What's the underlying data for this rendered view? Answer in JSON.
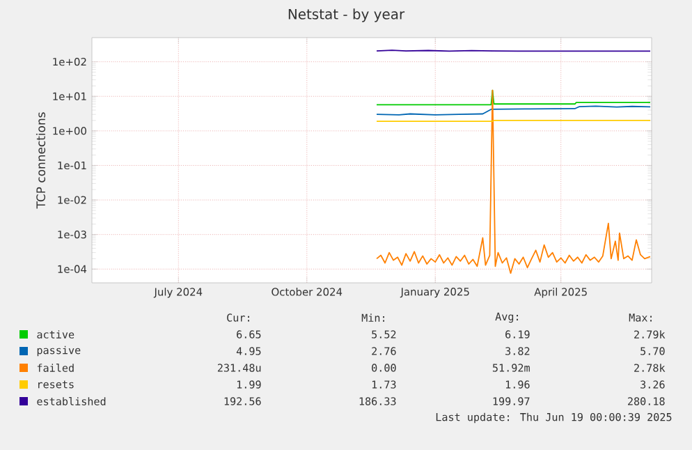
{
  "chart_data": {
    "type": "line",
    "title": "Netstat - by year",
    "ylabel": "TCP connections",
    "xlim": [
      "2024-05-14",
      "2025-06-19"
    ],
    "xticks": [
      {
        "value": "2024-07-15",
        "label": "July 2024"
      },
      {
        "value": "2024-10-15",
        "label": "October 2024"
      },
      {
        "value": "2025-01-15",
        "label": "January 2025"
      },
      {
        "value": "2025-04-15",
        "label": "April 2025"
      }
    ],
    "ylim": [
      4e-05,
      500
    ],
    "log": true,
    "yticks": [
      {
        "value": 0.0001,
        "label": "1e-04"
      },
      {
        "value": 0.001,
        "label": "1e-03"
      },
      {
        "value": 0.01,
        "label": "1e-02"
      },
      {
        "value": 0.1,
        "label": "1e-01"
      },
      {
        "value": 1,
        "label": "1e+00"
      },
      {
        "value": 10,
        "label": "1e+01"
      },
      {
        "value": 100,
        "label": "1e+02"
      }
    ],
    "grid": true,
    "legend": "bottom",
    "series": [
      {
        "name": "active",
        "color": "#00cc00",
        "x": [
          "2024-12-04",
          "2025-02-24",
          "2025-02-25",
          "2025-02-26",
          "2025-04-25",
          "2025-04-26",
          "2025-06-18"
        ],
        "values": [
          5.7,
          5.7,
          15,
          6.0,
          6.0,
          6.6,
          6.6
        ]
      },
      {
        "name": "passive",
        "color": "#0066b3",
        "x": [
          "2024-12-04",
          "2024-12-20",
          "2024-12-28",
          "2025-01-15",
          "2025-02-01",
          "2025-02-18",
          "2025-02-24",
          "2025-03-20",
          "2025-04-25",
          "2025-04-28",
          "2025-05-10",
          "2025-05-25",
          "2025-06-05",
          "2025-06-18"
        ],
        "values": [
          3.0,
          2.9,
          3.1,
          2.9,
          3.0,
          3.1,
          4.2,
          4.3,
          4.4,
          5.0,
          5.2,
          4.9,
          5.1,
          4.95
        ]
      },
      {
        "name": "failed",
        "color": "#ff8000",
        "x": [
          "2024-12-04",
          "2024-12-07",
          "2024-12-10",
          "2024-12-13",
          "2024-12-16",
          "2024-12-19",
          "2024-12-22",
          "2024-12-25",
          "2024-12-28",
          "2024-12-31",
          "2025-01-03",
          "2025-01-06",
          "2025-01-09",
          "2025-01-12",
          "2025-01-15",
          "2025-01-18",
          "2025-01-21",
          "2025-01-24",
          "2025-01-27",
          "2025-01-30",
          "2025-02-02",
          "2025-02-05",
          "2025-02-08",
          "2025-02-11",
          "2025-02-14",
          "2025-02-18",
          "2025-02-20",
          "2025-02-23",
          "2025-02-25",
          "2025-02-27",
          "2025-03-01",
          "2025-03-04",
          "2025-03-07",
          "2025-03-10",
          "2025-03-13",
          "2025-03-16",
          "2025-03-19",
          "2025-03-22",
          "2025-03-25",
          "2025-03-28",
          "2025-03-31",
          "2025-04-03",
          "2025-04-06",
          "2025-04-09",
          "2025-04-12",
          "2025-04-15",
          "2025-04-18",
          "2025-04-21",
          "2025-04-24",
          "2025-04-27",
          "2025-04-30",
          "2025-05-03",
          "2025-05-06",
          "2025-05-09",
          "2025-05-12",
          "2025-05-15",
          "2025-05-19",
          "2025-05-21",
          "2025-05-24",
          "2025-05-26",
          "2025-05-27",
          "2025-05-30",
          "2025-06-02",
          "2025-06-05",
          "2025-06-08",
          "2025-06-11",
          "2025-06-14",
          "2025-06-18"
        ],
        "values": [
          0.0002,
          0.00025,
          0.00015,
          0.0003,
          0.00018,
          0.00022,
          0.00013,
          0.00028,
          0.00017,
          0.00032,
          0.00015,
          0.00024,
          0.00014,
          0.0002,
          0.00016,
          0.00026,
          0.00015,
          0.00021,
          0.00013,
          0.00023,
          0.00017,
          0.00025,
          0.00014,
          0.00019,
          0.00012,
          0.0008,
          0.00013,
          0.00025,
          15,
          0.00012,
          0.0003,
          0.00015,
          0.00021,
          7.6e-05,
          0.0002,
          0.00014,
          0.00022,
          0.00011,
          0.0002,
          0.00035,
          0.00016,
          0.0005,
          0.00022,
          0.0003,
          0.00016,
          0.00021,
          0.00015,
          0.00025,
          0.00017,
          0.00022,
          0.00015,
          0.00026,
          0.00018,
          0.00022,
          0.00016,
          0.00024,
          0.0021,
          0.0002,
          0.00064,
          0.00018,
          0.0011,
          0.0002,
          0.00024,
          0.00018,
          0.0007,
          0.00026,
          0.0002,
          0.00023
        ]
      },
      {
        "name": "resets",
        "color": "#ffcc00",
        "x": [
          "2024-12-04",
          "2025-02-25",
          "2025-02-26",
          "2025-06-18"
        ],
        "values": [
          1.9,
          1.9,
          2.0,
          2.0
        ]
      },
      {
        "name": "established",
        "color": "#330099",
        "x": [
          "2024-12-04",
          "2024-12-15",
          "2024-12-25",
          "2025-01-10",
          "2025-01-25",
          "2025-02-10",
          "2025-02-25",
          "2025-03-15",
          "2025-04-20",
          "2025-05-20",
          "2025-06-18"
        ],
        "values": [
          205,
          215,
          205,
          212,
          204,
          210,
          206,
          203,
          204,
          203,
          203
        ]
      }
    ],
    "annotations": [
      "Cur:",
      "Min:",
      "Avg:",
      "Max:",
      "6.65",
      "5.52",
      "6.19",
      "2.79k",
      "4.95",
      "2.76",
      "3.82",
      "5.70",
      "231.48u",
      "0.00",
      "51.92m",
      "2.78k",
      "1.99",
      "1.73",
      "1.96",
      "3.26",
      "192.56",
      "186.33",
      "199.97",
      "280.18",
      "Last update: Thu Jun 19 00:00:39 2025"
    ]
  }
}
